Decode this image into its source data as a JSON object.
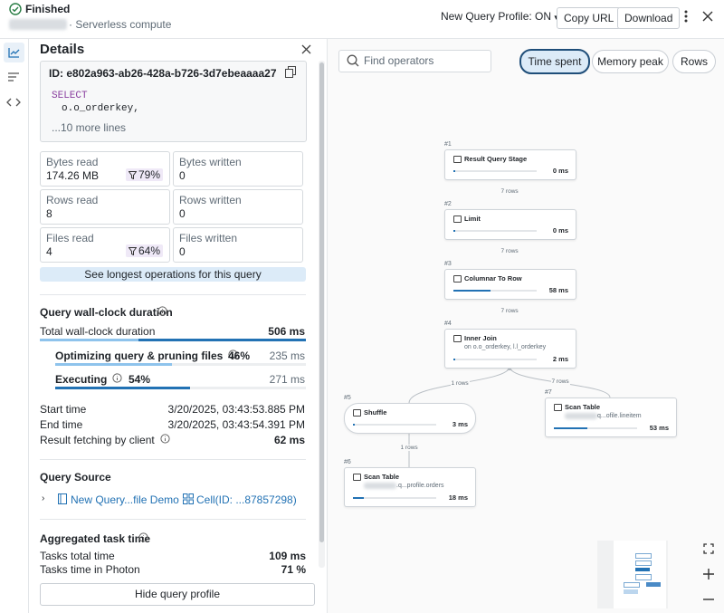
{
  "header": {
    "status": "Finished",
    "compute": "· Serverless compute",
    "profile_toggle": "New Query Profile: ON",
    "copy_url": "Copy URL",
    "download": "Download"
  },
  "details": {
    "title": "Details",
    "query_id": "ID: e802a963-ab26-428a-b726-3d7ebeaaaa27",
    "code": [
      "SELECT",
      "o.o_orderkey,"
    ],
    "more_lines": "...10 more lines",
    "metrics": [
      {
        "label": "Bytes read",
        "value": "174.26 MB",
        "filter": "79%"
      },
      {
        "label": "Bytes written",
        "value": "0"
      },
      {
        "label": "Rows read",
        "value": "8"
      },
      {
        "label": "Rows written",
        "value": "0"
      },
      {
        "label": "Files read",
        "value": "4",
        "filter": "64%"
      },
      {
        "label": "Files written",
        "value": "0"
      }
    ],
    "longest_ops": "See longest operations for this query",
    "duration": {
      "title": "Query wall-clock duration",
      "total_label": "Total wall-clock duration",
      "total_value": "506 ms",
      "phases": [
        {
          "label": "Optimizing query & pruning files",
          "percent": "46%",
          "value": "235 ms"
        },
        {
          "label": "Executing",
          "percent": "54%",
          "value": "271 ms"
        }
      ]
    },
    "times": [
      {
        "label": "Start time",
        "value": "3/20/2025, 03:43:53.885 PM"
      },
      {
        "label": "End time",
        "value": "3/20/2025, 03:43:54.391 PM"
      },
      {
        "label": "Result fetching by client",
        "value": "62 ms"
      }
    ],
    "source": {
      "title": "Query Source",
      "links": [
        "New Query...file Demo",
        "Cell(ID: ...87857298)"
      ]
    },
    "aggregated": {
      "title": "Aggregated task time",
      "rows": [
        {
          "label": "Tasks total time",
          "value": "109 ms"
        },
        {
          "label": "Tasks time in Photon",
          "value": "71 %"
        }
      ]
    },
    "hide_button": "Hide query profile"
  },
  "graph": {
    "search_placeholder": "Find operators",
    "metric_tabs": [
      "Time spent",
      "Memory peak",
      "Rows"
    ],
    "nodes": [
      {
        "id": "#1",
        "name": "Result Query Stage",
        "time": "0 ms"
      },
      {
        "id": "#2",
        "name": "Limit",
        "time": "0 ms"
      },
      {
        "id": "#3",
        "name": "Columnar To Row",
        "time": "58 ms"
      },
      {
        "id": "#4",
        "name": "Inner Join",
        "detail": "on o.o_orderkey, l.l_orderkey",
        "time": "2 ms"
      },
      {
        "id": "#5",
        "name": "Shuffle",
        "time": "3 ms"
      },
      {
        "id": "#6",
        "name": "Scan Table",
        "detail": ".q...profile.orders",
        "time": "18 ms"
      },
      {
        "id": "#7",
        "name": "Scan Table",
        "detail": "q...ofile.lineitem",
        "time": "53 ms"
      }
    ],
    "edges": [
      "7 rows",
      "7 rows",
      "7 rows",
      "1 rows",
      "7 rows",
      "1 rows"
    ]
  }
}
